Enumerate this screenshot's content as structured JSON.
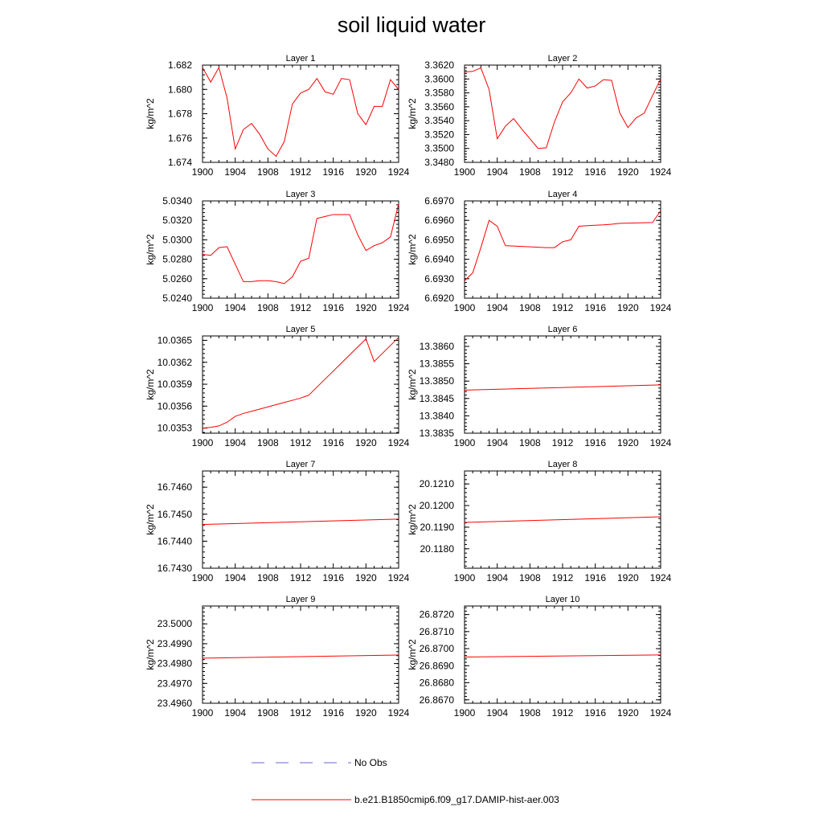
{
  "title": "soil liquid water",
  "legend": {
    "entries": [
      {
        "label": "No Obs",
        "color": "#6a6ad0",
        "dash": true
      },
      {
        "label": "b.e21.B1850cmip6.f09_g17.DAMIP-hist-aer.003",
        "color": "#ff0000",
        "dash": false
      }
    ]
  },
  "chart_data": [
    {
      "type": "line",
      "title": "Layer 1",
      "ylabel": "kg/m^2",
      "xlim": [
        1900,
        1924
      ],
      "ylim": [
        1.674,
        1.682
      ],
      "yticks": [
        "1.674",
        "1.676",
        "1.678",
        "1.680",
        "1.682"
      ],
      "xticks": [
        "1900",
        "1904",
        "1908",
        "1912",
        "1916",
        "1920",
        "1924"
      ],
      "series": [
        {
          "color": "#ff0000",
          "x": [
            1900,
            1901,
            1902,
            1903,
            1904,
            1905,
            1906,
            1907,
            1908,
            1909,
            1910,
            1911,
            1912,
            1913,
            1914,
            1915,
            1916,
            1917,
            1918,
            1919,
            1920,
            1921,
            1922,
            1923,
            1924
          ],
          "y": [
            1.6818,
            1.6806,
            1.6818,
            1.6793,
            1.6751,
            1.6767,
            1.6772,
            1.6763,
            1.6751,
            1.6745,
            1.6757,
            1.6788,
            1.6797,
            1.68,
            1.6809,
            1.6798,
            1.6796,
            1.6809,
            1.6808,
            1.678,
            1.6771,
            1.6786,
            1.6786,
            1.6808,
            1.68
          ]
        }
      ]
    },
    {
      "type": "line",
      "title": "Layer 2",
      "ylabel": "kg/m^2",
      "xlim": [
        1900,
        1924
      ],
      "ylim": [
        3.348,
        3.362
      ],
      "yticks": [
        "3.3480",
        "3.3500",
        "3.3520",
        "3.3540",
        "3.3560",
        "3.3580",
        "3.3600",
        "3.3620"
      ],
      "xticks": [
        "1900",
        "1904",
        "1908",
        "1912",
        "1916",
        "1920",
        "1924"
      ],
      "series": [
        {
          "color": "#ff0000",
          "x": [
            1900,
            1901,
            1902,
            1903,
            1904,
            1905,
            1906,
            1907,
            1908,
            1909,
            1910,
            1911,
            1912,
            1913,
            1914,
            1915,
            1916,
            1917,
            1918,
            1919,
            1920,
            1921,
            1922,
            1923,
            1924
          ],
          "y": [
            3.361,
            3.3611,
            3.3616,
            3.3585,
            3.3514,
            3.3532,
            3.3543,
            3.3528,
            3.3514,
            3.35,
            3.3501,
            3.3538,
            3.3567,
            3.358,
            3.36,
            3.3587,
            3.359,
            3.3599,
            3.3598,
            3.3551,
            3.353,
            3.3544,
            3.3551,
            3.3576,
            3.36
          ]
        }
      ]
    },
    {
      "type": "line",
      "title": "Layer 3",
      "ylabel": "kg/m^2",
      "xlim": [
        1900,
        1924
      ],
      "ylim": [
        5.024,
        5.034
      ],
      "yticks": [
        "5.0240",
        "5.0260",
        "5.0280",
        "5.0300",
        "5.0320",
        "5.0340"
      ],
      "xticks": [
        "1900",
        "1904",
        "1908",
        "1912",
        "1916",
        "1920",
        "1924"
      ],
      "series": [
        {
          "color": "#ff0000",
          "x": [
            1900,
            1901,
            1902,
            1903,
            1904,
            1905,
            1906,
            1907,
            1908,
            1909,
            1910,
            1911,
            1912,
            1913,
            1914,
            1915,
            1916,
            1917,
            1918,
            1919,
            1920,
            1921,
            1922,
            1923,
            1924
          ],
          "y": [
            5.0285,
            5.0284,
            5.0292,
            5.0293,
            5.0275,
            5.0257,
            5.0257,
            5.0258,
            5.0258,
            5.0257,
            5.0255,
            5.0262,
            5.0278,
            5.0281,
            5.0322,
            5.0324,
            5.0326,
            5.0326,
            5.0326,
            5.0305,
            5.0289,
            5.0294,
            5.0297,
            5.0303,
            5.0337
          ]
        }
      ]
    },
    {
      "type": "line",
      "title": "Layer 4",
      "ylabel": "kg/m^2",
      "xlim": [
        1900,
        1924
      ],
      "ylim": [
        6.692,
        6.697
      ],
      "yticks": [
        "6.6920",
        "6.6930",
        "6.6940",
        "6.6950",
        "6.6960",
        "6.6970"
      ],
      "xticks": [
        "1900",
        "1904",
        "1908",
        "1912",
        "1916",
        "1920",
        "1924"
      ],
      "series": [
        {
          "color": "#ff0000",
          "x": [
            1900,
            1901,
            1902,
            1903,
            1904,
            1905,
            1906,
            1907,
            1908,
            1909,
            1910,
            1911,
            1912,
            1913,
            1914,
            1915,
            1916,
            1917,
            1918,
            1919,
            1920,
            1921,
            1922,
            1923,
            1924
          ],
          "y": [
            6.6929,
            6.6933,
            6.6946,
            6.696,
            6.6957,
            6.6947,
            6.69468,
            6.69466,
            6.69464,
            6.69462,
            6.6946,
            6.6946,
            6.6949,
            6.695,
            6.6957,
            6.69573,
            6.69575,
            6.69577,
            6.6958,
            6.69585,
            6.69586,
            6.69587,
            6.69588,
            6.69589,
            6.6965
          ]
        }
      ]
    },
    {
      "type": "line",
      "title": "Layer 5",
      "ylabel": "kg/m^2",
      "xlim": [
        1900,
        1924
      ],
      "ylim": [
        10.03523,
        10.03656
      ],
      "yticks": [
        "10.0353",
        "10.0356",
        "10.0359",
        "10.0362",
        "10.0365"
      ],
      "xticks": [
        "1900",
        "1904",
        "1908",
        "1912",
        "1916",
        "1920",
        "1924"
      ],
      "series": [
        {
          "color": "#ff0000",
          "x": [
            1900,
            1901,
            1902,
            1903,
            1904,
            1905,
            1906,
            1907,
            1908,
            1909,
            1910,
            1911,
            1912,
            1913,
            1914,
            1915,
            1916,
            1917,
            1918,
            1919,
            1920,
            1921,
            1922,
            1923,
            1924
          ],
          "y": [
            10.0353,
            10.03531,
            10.03533,
            10.03538,
            10.03546,
            10.0355,
            10.03553,
            10.03556,
            10.03559,
            10.03562,
            10.03565,
            10.03568,
            10.03571,
            10.03575,
            10.03586,
            10.03597,
            10.03608,
            10.03619,
            10.0363,
            10.03641,
            10.03652,
            10.03621,
            10.03632,
            10.03643,
            10.03654
          ]
        }
      ]
    },
    {
      "type": "line",
      "title": "Layer 6",
      "ylabel": "kg/m^2",
      "xlim": [
        1900,
        1924
      ],
      "ylim": [
        13.3835,
        13.3863
      ],
      "yticks": [
        "13.3835",
        "13.3840",
        "13.3845",
        "13.3850",
        "13.3855",
        "13.3860"
      ],
      "xticks": [
        "1900",
        "1904",
        "1908",
        "1912",
        "1916",
        "1920",
        "1924"
      ],
      "series": [
        {
          "color": "#ff0000",
          "x": [
            1900,
            1924
          ],
          "y": [
            13.38474,
            13.38489
          ]
        }
      ]
    },
    {
      "type": "line",
      "title": "Layer 7",
      "ylabel": "kg/m^2",
      "xlim": [
        1900,
        1924
      ],
      "ylim": [
        16.743,
        16.7466
      ],
      "yticks": [
        "16.7430",
        "16.7440",
        "16.7450",
        "16.7460"
      ],
      "xticks": [
        "1900",
        "1904",
        "1908",
        "1912",
        "1916",
        "1920",
        "1924"
      ],
      "series": [
        {
          "color": "#ff0000",
          "x": [
            1900,
            1924
          ],
          "y": [
            16.74462,
            16.74482
          ]
        }
      ]
    },
    {
      "type": "line",
      "title": "Layer 8",
      "ylabel": "kg/m^2",
      "xlim": [
        1900,
        1924
      ],
      "ylim": [
        20.1171,
        20.1216
      ],
      "yticks": [
        "20.1180",
        "20.1190",
        "20.1200",
        "20.1210"
      ],
      "xticks": [
        "1900",
        "1904",
        "1908",
        "1912",
        "1916",
        "1920",
        "1924"
      ],
      "series": [
        {
          "color": "#ff0000",
          "x": [
            1900,
            1924
          ],
          "y": [
            20.11922,
            20.11948
          ]
        }
      ]
    },
    {
      "type": "line",
      "title": "Layer 9",
      "ylabel": "kg/m^2",
      "xlim": [
        1900,
        1924
      ],
      "ylim": [
        23.496,
        23.5009
      ],
      "yticks": [
        "23.4960",
        "23.4970",
        "23.4980",
        "23.4990",
        "23.5000"
      ],
      "xticks": [
        "1900",
        "1904",
        "1908",
        "1912",
        "1916",
        "1920",
        "1924"
      ],
      "series": [
        {
          "color": "#ff0000",
          "x": [
            1900,
            1924
          ],
          "y": [
            23.49827,
            23.49843
          ]
        }
      ]
    },
    {
      "type": "line",
      "title": "Layer 10",
      "ylabel": "kg/m^2",
      "xlim": [
        1900,
        1924
      ],
      "ylim": [
        26.8668,
        26.8725
      ],
      "yticks": [
        "26.8670",
        "26.8680",
        "26.8690",
        "26.8700",
        "26.8710",
        "26.8720"
      ],
      "xticks": [
        "1900",
        "1904",
        "1908",
        "1912",
        "1916",
        "1920",
        "1924"
      ],
      "series": [
        {
          "color": "#ff0000",
          "x": [
            1900,
            1924
          ],
          "y": [
            26.86951,
            26.86963
          ]
        }
      ]
    }
  ]
}
